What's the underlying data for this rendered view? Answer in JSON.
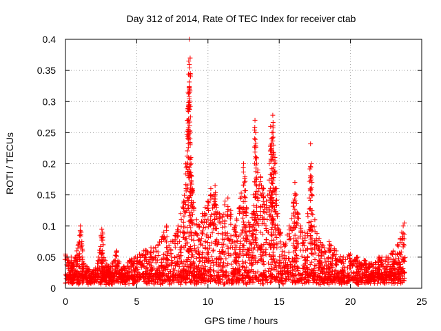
{
  "chart_data": {
    "type": "scatter",
    "title": "Day 312 of 2014, Rate Of TEC Index for receiver ctab",
    "xlabel": "GPS time / hours",
    "ylabel": "ROTI / TECUs",
    "xlim": [
      0,
      25
    ],
    "ylim": [
      0,
      0.4
    ],
    "x_ticks": [
      0,
      5,
      10,
      15,
      20,
      25
    ],
    "x_tick_labels": [
      "0",
      "5",
      "10",
      "15",
      "20",
      "25"
    ],
    "y_ticks": [
      0,
      0.05,
      0.1,
      0.15,
      0.2,
      0.25,
      0.3,
      0.35,
      0.4
    ],
    "y_tick_labels": [
      "0",
      "0.05",
      "0.1",
      "0.15",
      "0.2",
      "0.25",
      "0.3",
      "0.35",
      "0.4"
    ],
    "grid": true,
    "marker": "+",
    "color": "#ff0000",
    "series": [
      {
        "name": "ROTI",
        "x": [
          0.0,
          0.1,
          0.2,
          0.3,
          0.4,
          0.5,
          0.6,
          0.7,
          0.8,
          0.9,
          1.0,
          1.05,
          1.1,
          1.15,
          1.2,
          1.3,
          1.5,
          1.7,
          2.0,
          2.3,
          2.5,
          2.55,
          2.6,
          2.65,
          2.8,
          3.0,
          3.3,
          3.6,
          3.9,
          4.1,
          4.5,
          4.9,
          5.2,
          5.5,
          6.0,
          6.5,
          6.9,
          7.1,
          7.4,
          7.7,
          7.9,
          8.1,
          8.3,
          8.45,
          8.55,
          8.6,
          8.65,
          8.7,
          8.75,
          8.8,
          8.85,
          8.9,
          9.0,
          9.2,
          9.4,
          9.6,
          9.8,
          10.0,
          10.2,
          10.4,
          10.5,
          10.6,
          10.8,
          11.0,
          11.2,
          11.4,
          11.6,
          11.9,
          12.2,
          12.5,
          12.6,
          12.7,
          12.9,
          13.1,
          13.2,
          13.3,
          13.35,
          13.4,
          13.5,
          13.7,
          13.9,
          14.1,
          14.3,
          14.4,
          14.45,
          14.5,
          14.55,
          14.6,
          14.7,
          14.8,
          14.9,
          15.1,
          15.4,
          15.7,
          16.0,
          16.1,
          16.2,
          16.3,
          16.5,
          16.8,
          17.0,
          17.2,
          17.25,
          17.3,
          17.5,
          17.8,
          18.0,
          18.5,
          19.0,
          19.5,
          20.0,
          20.5,
          21.0,
          21.5,
          22.0,
          22.5,
          23.0,
          23.3,
          23.5,
          23.6,
          23.7,
          23.8
        ],
        "y": [
          0.055,
          0.05,
          0.045,
          0.04,
          0.05,
          0.035,
          0.045,
          0.05,
          0.06,
          0.07,
          0.085,
          0.1,
          0.09,
          0.075,
          0.06,
          0.04,
          0.035,
          0.03,
          0.03,
          0.05,
          0.085,
          0.095,
          0.09,
          0.07,
          0.045,
          0.035,
          0.04,
          0.06,
          0.03,
          0.035,
          0.045,
          0.05,
          0.055,
          0.06,
          0.065,
          0.07,
          0.09,
          0.1,
          0.075,
          0.085,
          0.1,
          0.12,
          0.14,
          0.2,
          0.27,
          0.315,
          0.365,
          0.4,
          0.37,
          0.21,
          0.18,
          0.16,
          0.13,
          0.11,
          0.1,
          0.12,
          0.13,
          0.14,
          0.16,
          0.15,
          0.165,
          0.13,
          0.12,
          0.115,
          0.14,
          0.145,
          0.125,
          0.1,
          0.13,
          0.2,
          0.18,
          0.13,
          0.1,
          0.12,
          0.15,
          0.27,
          0.25,
          0.21,
          0.19,
          0.18,
          0.16,
          0.14,
          0.2,
          0.26,
          0.24,
          0.25,
          0.278,
          0.23,
          0.21,
          0.16,
          0.12,
          0.09,
          0.07,
          0.1,
          0.14,
          0.17,
          0.15,
          0.12,
          0.1,
          0.09,
          0.12,
          0.232,
          0.2,
          0.17,
          0.11,
          0.08,
          0.07,
          0.075,
          0.06,
          0.05,
          0.055,
          0.05,
          0.045,
          0.04,
          0.05,
          0.05,
          0.06,
          0.07,
          0.08,
          0.09,
          0.1,
          0.105
        ]
      }
    ]
  }
}
